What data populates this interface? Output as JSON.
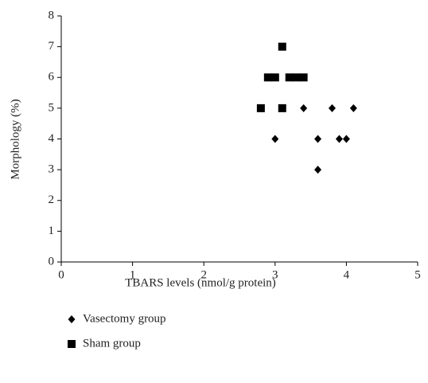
{
  "chart_data": {
    "type": "scatter",
    "xlabel": "TBARS levels (nmol/g protein)",
    "ylabel": "Morphology (%)",
    "xlim": [
      0,
      5
    ],
    "xticks": [
      0,
      1,
      2,
      3,
      4,
      5
    ],
    "ylim": [
      0,
      8
    ],
    "yticks": [
      0,
      1,
      2,
      3,
      4,
      5,
      6,
      7,
      8
    ],
    "grid": false,
    "legend": "bottom-left",
    "series": [
      {
        "name": "Vasectomy group",
        "color": "#000000",
        "marker": "diamond",
        "x": [
          3.0,
          3.4,
          3.6,
          3.6,
          3.8,
          3.9,
          4.0,
          4.1
        ],
        "values": [
          4,
          5,
          4,
          3,
          5,
          4,
          4,
          5
        ]
      },
      {
        "name": "Sham group",
        "color": "#000000",
        "marker": "square",
        "x": [
          2.8,
          3.1,
          3.1,
          2.9,
          3.0,
          3.2,
          3.3,
          3.4
        ],
        "values": [
          5,
          5,
          7,
          6,
          6,
          6,
          6,
          6
        ]
      }
    ]
  }
}
